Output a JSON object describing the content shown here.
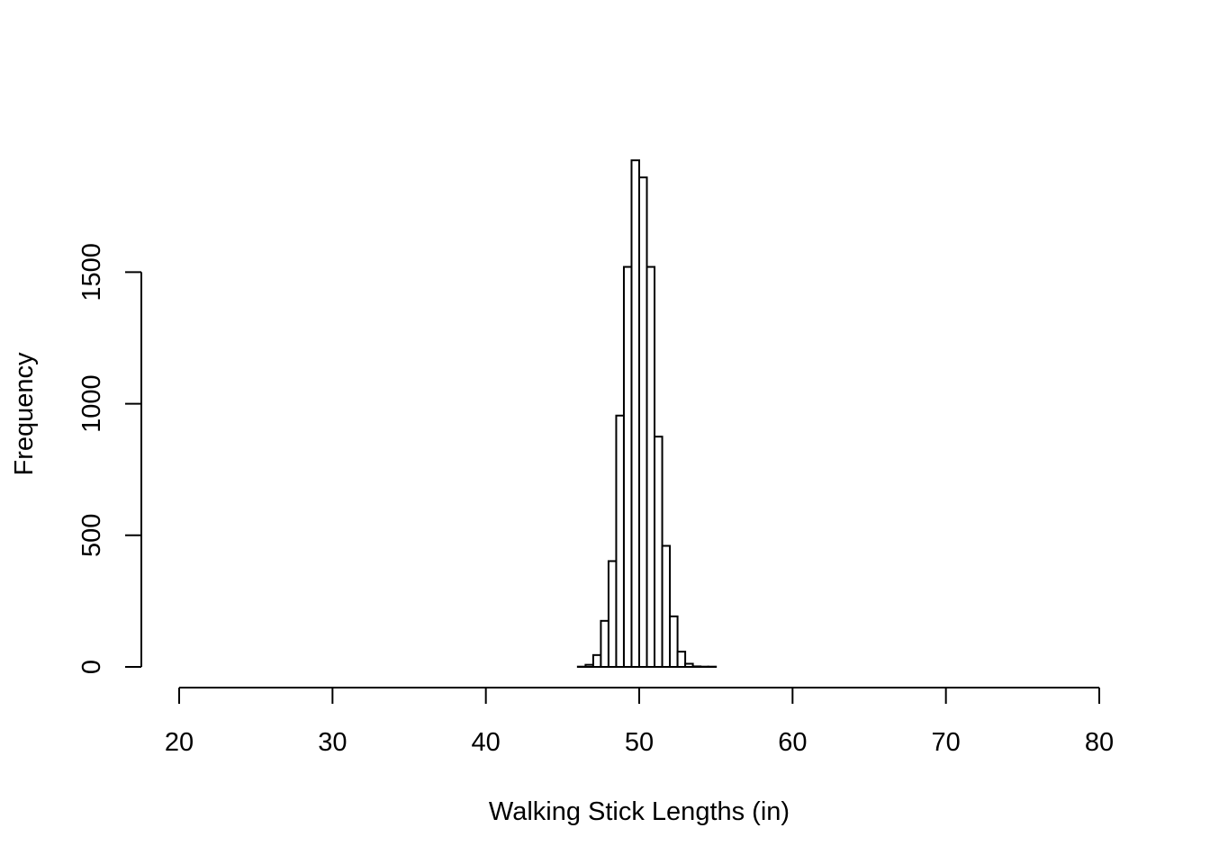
{
  "chart_data": {
    "type": "bar",
    "subtype": "histogram",
    "title": "",
    "xlabel": "Walking Stick Lengths (in)",
    "ylabel": "Frequency",
    "xlim": [
      20,
      80
    ],
    "ylim": [
      0,
      1900
    ],
    "grid": false,
    "x_ticks": [
      20,
      30,
      40,
      50,
      60,
      70,
      80
    ],
    "x_tick_labels": [
      "20",
      "30",
      "40",
      "50",
      "60",
      "70",
      "80"
    ],
    "y_ticks": [
      0,
      500,
      1000,
      1500
    ],
    "y_tick_labels": [
      "0",
      "500",
      "1000",
      "1500"
    ],
    "bin_width": 0.5,
    "bins": [
      {
        "x0": 46.0,
        "x1": 46.5,
        "count": 1
      },
      {
        "x0": 46.5,
        "x1": 47.0,
        "count": 8
      },
      {
        "x0": 47.0,
        "x1": 47.5,
        "count": 45
      },
      {
        "x0": 47.5,
        "x1": 48.0,
        "count": 175
      },
      {
        "x0": 48.0,
        "x1": 48.5,
        "count": 402
      },
      {
        "x0": 48.5,
        "x1": 49.0,
        "count": 955
      },
      {
        "x0": 49.0,
        "x1": 49.5,
        "count": 1520
      },
      {
        "x0": 49.5,
        "x1": 50.0,
        "count": 1925
      },
      {
        "x0": 50.0,
        "x1": 50.5,
        "count": 1860
      },
      {
        "x0": 50.5,
        "x1": 51.0,
        "count": 1520
      },
      {
        "x0": 51.0,
        "x1": 51.5,
        "count": 875
      },
      {
        "x0": 51.5,
        "x1": 52.0,
        "count": 460
      },
      {
        "x0": 52.0,
        "x1": 52.5,
        "count": 192
      },
      {
        "x0": 52.5,
        "x1": 53.0,
        "count": 58
      },
      {
        "x0": 53.0,
        "x1": 53.5,
        "count": 12
      },
      {
        "x0": 53.5,
        "x1": 54.0,
        "count": 2
      },
      {
        "x0": 54.0,
        "x1": 54.5,
        "count": 1
      },
      {
        "x0": 54.5,
        "x1": 55.0,
        "count": 1
      }
    ]
  }
}
